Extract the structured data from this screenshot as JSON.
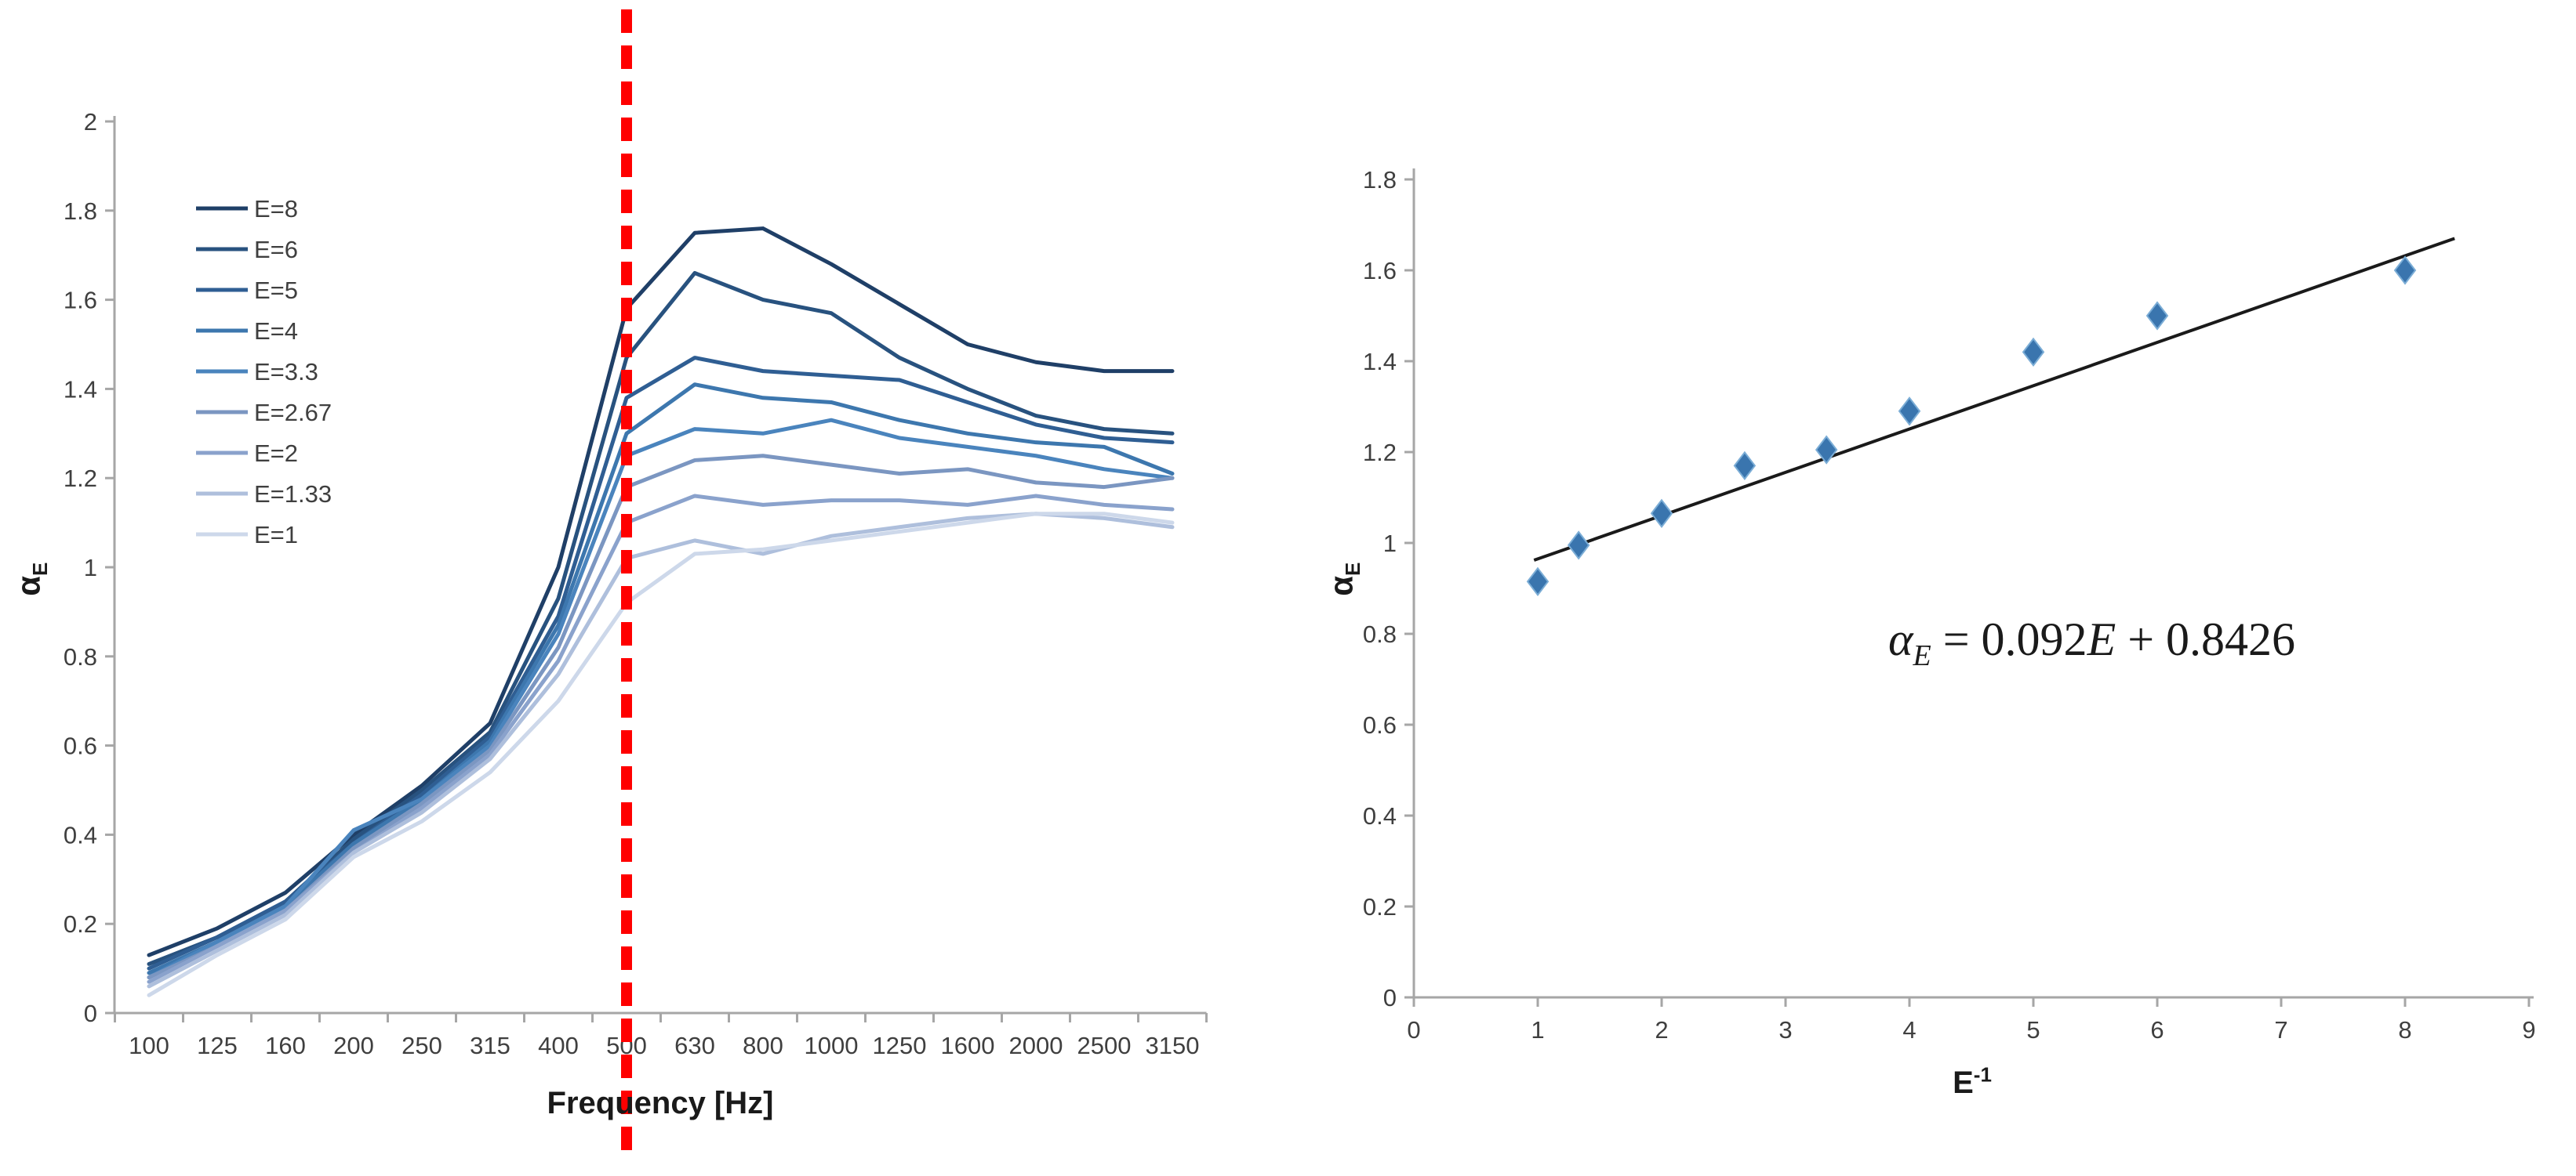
{
  "figure": {
    "background": "#ffffff",
    "axis_color": "#a6a6a6",
    "tick_label_color": "#3f3f3f"
  },
  "labels": {
    "left_y_alpha": "α",
    "left_y_sub": "E",
    "left_x_title": "Frequency [Hz]",
    "right_y_alpha": "α",
    "right_y_sub": "E",
    "right_x_base": "E",
    "right_x_sup": "-1"
  },
  "equation": {
    "alpha": "α",
    "alpha_sub": "E",
    "mid": " = 0.092",
    "var": "E",
    "tail": " + 0.8426"
  },
  "chart_data": [
    {
      "type": "line",
      "title": "",
      "xlabel": "Frequency [Hz]",
      "ylabel": "αE",
      "ylim": [
        0,
        2
      ],
      "ytick_step": 0.2,
      "grid": false,
      "legend_position": "inside-upper-left",
      "annotation": {
        "kind": "vertical-dashed-line",
        "at_category": "500",
        "color": "#ff0000"
      },
      "categories": [
        "100",
        "125",
        "160",
        "200",
        "250",
        "315",
        "400",
        "500",
        "630",
        "800",
        "1000",
        "1250",
        "1600",
        "2000",
        "2500",
        "3150"
      ],
      "series": [
        {
          "name": "E=8",
          "color": "#1f3f67",
          "values": [
            0.13,
            0.19,
            0.27,
            0.4,
            0.51,
            0.65,
            1.0,
            1.58,
            1.75,
            1.76,
            1.68,
            1.59,
            1.5,
            1.46,
            1.44,
            1.44
          ]
        },
        {
          "name": "E=6",
          "color": "#28527f",
          "values": [
            0.11,
            0.17,
            0.25,
            0.39,
            0.5,
            0.63,
            0.93,
            1.47,
            1.66,
            1.6,
            1.57,
            1.47,
            1.4,
            1.34,
            1.31,
            1.3
          ]
        },
        {
          "name": "E=5",
          "color": "#2f5e93",
          "values": [
            0.1,
            0.17,
            0.25,
            0.38,
            0.49,
            0.62,
            0.89,
            1.38,
            1.47,
            1.44,
            1.43,
            1.42,
            1.37,
            1.32,
            1.29,
            1.28
          ]
        },
        {
          "name": "E=4",
          "color": "#3d77ae",
          "values": [
            0.09,
            0.16,
            0.24,
            0.38,
            0.48,
            0.61,
            0.87,
            1.3,
            1.41,
            1.38,
            1.37,
            1.33,
            1.3,
            1.28,
            1.27,
            1.21
          ]
        },
        {
          "name": "E=3.3",
          "color": "#4a84bd",
          "values": [
            0.08,
            0.16,
            0.24,
            0.41,
            0.48,
            0.6,
            0.85,
            1.25,
            1.31,
            1.3,
            1.33,
            1.29,
            1.27,
            1.25,
            1.22,
            1.2
          ]
        },
        {
          "name": "E=2.67",
          "color": "#7b96c1",
          "values": [
            0.08,
            0.15,
            0.23,
            0.37,
            0.47,
            0.59,
            0.82,
            1.18,
            1.24,
            1.25,
            1.23,
            1.21,
            1.22,
            1.19,
            1.18,
            1.2
          ]
        },
        {
          "name": "E=2",
          "color": "#8aa2cc",
          "values": [
            0.07,
            0.15,
            0.23,
            0.36,
            0.46,
            0.58,
            0.79,
            1.1,
            1.16,
            1.14,
            1.15,
            1.15,
            1.14,
            1.16,
            1.14,
            1.13
          ]
        },
        {
          "name": "E=1.33",
          "color": "#aebfdc",
          "values": [
            0.06,
            0.14,
            0.22,
            0.36,
            0.45,
            0.57,
            0.76,
            1.02,
            1.06,
            1.03,
            1.07,
            1.09,
            1.11,
            1.12,
            1.11,
            1.09
          ]
        },
        {
          "name": "E=1",
          "color": "#cdd8ea",
          "values": [
            0.04,
            0.13,
            0.21,
            0.35,
            0.43,
            0.54,
            0.7,
            0.92,
            1.03,
            1.04,
            1.06,
            1.08,
            1.1,
            1.12,
            1.12,
            1.1
          ]
        }
      ]
    },
    {
      "type": "scatter",
      "title": "",
      "xlabel": "E⁻¹",
      "ylabel": "αE",
      "xlim": [
        0,
        9
      ],
      "ylim": [
        0,
        1.8
      ],
      "xtick_step": 1,
      "ytick_step": 0.2,
      "grid": false,
      "marker": {
        "shape": "diamond",
        "color": "#3a75ae",
        "edge": "#7badd6"
      },
      "x": [
        1,
        1.33,
        2,
        2.67,
        3.33,
        4,
        5,
        6,
        8
      ],
      "y": [
        0.915,
        0.995,
        1.065,
        1.17,
        1.205,
        1.29,
        1.42,
        1.5,
        1.6
      ],
      "trendline": {
        "slope": 0.092,
        "intercept": 0.8426,
        "equation": "αE = 0.092E + 0.8426",
        "color": "#1a1a1a",
        "x_start": 0.97,
        "y_start": 0.962,
        "x_end": 8.4,
        "y_end": 1.67
      }
    }
  ]
}
